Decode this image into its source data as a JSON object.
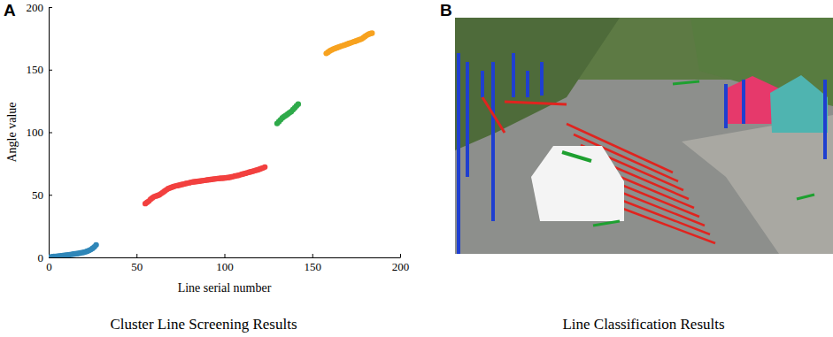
{
  "chart_data": {
    "type": "scatter",
    "panel_label": "A",
    "caption": "Cluster Line Screening Results",
    "x_label": "Line serial number",
    "y_label": "Angle value",
    "xlim": [
      0,
      200
    ],
    "ylim": [
      0,
      200
    ],
    "xticks": [
      0,
      50,
      100,
      150,
      200
    ],
    "yticks": [
      0,
      50,
      100,
      150,
      200
    ],
    "grid": false,
    "marker": "circle",
    "series": [
      {
        "color": "#2f86b8",
        "x": [
          1,
          2,
          3,
          4,
          5,
          6,
          7,
          8,
          9,
          10,
          11,
          12,
          13,
          14,
          15,
          16,
          17,
          18,
          19,
          20,
          21,
          22,
          23,
          24,
          25,
          26,
          27
        ],
        "values": [
          0.3,
          0.5,
          0.7,
          0.8,
          1.0,
          1.1,
          1.3,
          1.5,
          1.6,
          1.8,
          2.0,
          2.2,
          2.4,
          2.6,
          2.8,
          3.0,
          3.2,
          3.5,
          3.8,
          4.1,
          4.5,
          5.0,
          5.6,
          6.3,
          7.2,
          8.4,
          10.0
        ]
      },
      {
        "color": "#f2403f",
        "x": [
          55,
          56,
          57,
          58,
          59,
          60,
          61,
          62,
          63,
          64,
          65,
          66,
          67,
          68,
          69,
          70,
          71,
          72,
          73,
          74,
          75,
          76,
          77,
          78,
          79,
          80,
          81,
          82,
          83,
          84,
          85,
          86,
          87,
          88,
          89,
          90,
          91,
          92,
          93,
          94,
          95,
          96,
          97,
          98,
          99,
          100,
          101,
          102,
          103,
          104,
          105,
          106,
          107,
          108,
          109,
          110,
          111,
          112,
          113,
          114,
          115,
          116,
          117,
          118,
          119,
          120,
          121,
          122,
          123
        ],
        "values": [
          43.0,
          44.0,
          45.0,
          46.5,
          47.5,
          48.5,
          49.0,
          49.5,
          50.0,
          51.0,
          52.0,
          53.0,
          54.0,
          55.0,
          55.5,
          56.0,
          56.5,
          57.0,
          57.3,
          57.6,
          58.0,
          58.3,
          58.6,
          59.0,
          59.3,
          59.6,
          60.0,
          60.2,
          60.4,
          60.6,
          60.8,
          61.0,
          61.2,
          61.4,
          61.6,
          61.8,
          62.0,
          62.2,
          62.4,
          62.6,
          62.8,
          63.0,
          63.1,
          63.2,
          63.3,
          63.4,
          63.6,
          63.8,
          64.0,
          64.3,
          64.6,
          65.0,
          65.3,
          65.6,
          66.0,
          66.4,
          66.8,
          67.2,
          67.6,
          68.0,
          68.4,
          68.8,
          69.2,
          69.6,
          70.0,
          70.5,
          71.0,
          71.5,
          72.2
        ]
      },
      {
        "color": "#2eaa4a",
        "x": [
          130,
          131,
          132,
          133,
          134,
          135,
          136,
          137,
          138,
          139,
          140,
          141,
          142
        ],
        "values": [
          107,
          108.5,
          110,
          111.5,
          112.5,
          113.5,
          114.5,
          115.5,
          116.5,
          118,
          119.5,
          121,
          122.5
        ]
      },
      {
        "color": "#f7a21f",
        "x": [
          158,
          159,
          160,
          161,
          162,
          163,
          164,
          165,
          166,
          167,
          168,
          169,
          170,
          171,
          172,
          173,
          174,
          175,
          176,
          177,
          178,
          179,
          180,
          181,
          182,
          183,
          184
        ],
        "values": [
          163,
          164,
          165,
          165.8,
          166.5,
          167,
          167.5,
          168,
          168.5,
          169,
          169.5,
          170,
          170.5,
          171,
          171.5,
          172,
          172.5,
          173,
          173.5,
          174,
          174.5,
          175.5,
          176.5,
          177.5,
          178.3,
          178.8,
          179.2
        ]
      }
    ]
  },
  "image_panel": {
    "panel_label": "B",
    "caption": "Line Classification Results"
  }
}
